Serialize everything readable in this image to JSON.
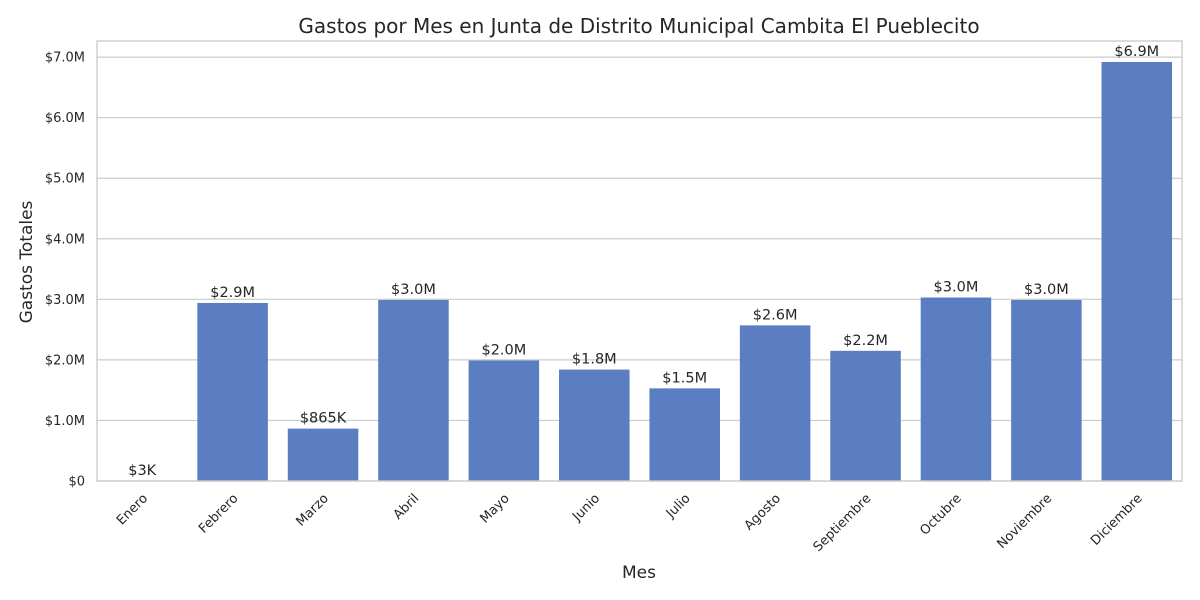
{
  "chart_data": {
    "type": "bar",
    "title": "Gastos por Mes en Junta de Distrito Municipal Cambita El Pueblecito",
    "xlabel": "Mes",
    "ylabel": "Gastos Totales",
    "categories": [
      "Enero",
      "Febrero",
      "Marzo",
      "Abril",
      "Mayo",
      "Junio",
      "Julio",
      "Agosto",
      "Septiembre",
      "Octubre",
      "Noviembre",
      "Diciembre"
    ],
    "values": [
      3000,
      2940000,
      865000,
      2990000,
      1990000,
      1840000,
      1530000,
      2570000,
      2150000,
      3030000,
      2990000,
      6920000
    ],
    "data_labels": [
      "$3K",
      "$2.9M",
      "$865K",
      "$3.0M",
      "$2.0M",
      "$1.8M",
      "$1.5M",
      "$2.6M",
      "$2.2M",
      "$3.0M",
      "$3.0M",
      "$6.9M"
    ],
    "yticks": [
      0,
      1000000,
      2000000,
      3000000,
      4000000,
      5000000,
      6000000,
      7000000
    ],
    "ytick_labels": [
      "$0",
      "$1.0M",
      "$2.0M",
      "$3.0M",
      "$4.0M",
      "$5.0M",
      "$6.0M",
      "$7.0M"
    ],
    "ylim": [
      0,
      7266000
    ],
    "grid": "horizontal",
    "legend": "none",
    "colors": {
      "bar": "#5b7dc2",
      "grid": "#cccccc",
      "text": "#262626"
    }
  }
}
